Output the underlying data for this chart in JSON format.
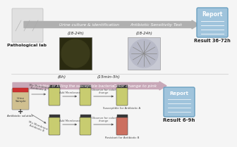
{
  "bg_color": "#f5f5f5",
  "top_arrow_color": "#b0b0b0",
  "bottom_arrow_color": "#c8a8b8",
  "report_fc": "#a0c4dc",
  "report_ec": "#6a9fc0",
  "text_dark": "#222222",
  "text_mid": "#555555",
  "text_white": "#ffffff",
  "plate1_fc": "#2a2a10",
  "plate2_fc": "#c8cad4",
  "tube_yellow": "#c8cc70",
  "tube_pink": "#cc7060",
  "tube_dark_cap": "#383838",
  "urine_fc": "#d8c898",
  "lab_fc": "#e0e0e0",
  "pathlab_label": "Pathological lab",
  "arrow_top_label1": "Urine culture & identification",
  "arrow_top_label2": "Antibiotic Sensitivity Test",
  "time_top1": "(18-24h)",
  "time_top2": "(18-24h)",
  "result_top": "Result 36-72h",
  "arrow_bot_label1": "Inhibition or killing the susceptible bacteria",
  "arrow_bot_label2": "Color change to pink",
  "time_bot1": "(6h)",
  "time_bot2": "(15min-5h)",
  "urine_label": "Urine\nSample",
  "antibiotic_label": "Antibiotic solution",
  "add_membrane": "Add Membrane",
  "observe": "Observe for color\nchange",
  "susceptible_label": "Susceptible for Antibiotic A",
  "resistant_label": "Resistant for Antibiotic B",
  "result_bot": "Result 6-9h",
  "report_label": "Report",
  "mix_a": "Mix Membrane\nAntibiotic A",
  "mix_b": "Mix Membrane\nAntibiotic B"
}
